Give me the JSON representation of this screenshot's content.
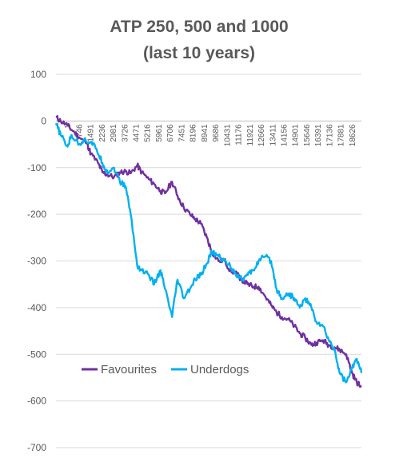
{
  "chart_data": {
    "type": "line",
    "title_lines": [
      "ATP 250, 500 and 1000",
      "(last 10 years)"
    ],
    "xlabel": "",
    "ylabel": "",
    "ylim": [
      -700,
      100
    ],
    "yticks": [
      100,
      0,
      -100,
      -200,
      -300,
      -400,
      -500,
      -600,
      -700
    ],
    "xlim": [
      1,
      19600
    ],
    "x_tick_labels": [
      "1",
      "746",
      "1491",
      "2236",
      "2981",
      "3726",
      "4471",
      "5216",
      "5961",
      "6706",
      "7451",
      "8196",
      "8941",
      "9686",
      "10431",
      "11176",
      "11921",
      "12666",
      "13411",
      "14156",
      "14901",
      "15646",
      "16391",
      "17136",
      "17881",
      "18626"
    ],
    "grid": true,
    "legend_position": "bottom-left inside plot",
    "series": [
      {
        "name": "Favourites",
        "color": "#7030A0",
        "x": [
          1,
          300,
          746,
          1200,
          1491,
          2000,
          2236,
          2700,
          2981,
          3300,
          3726,
          4100,
          4471,
          4800,
          5216,
          5500,
          5961,
          6300,
          6706,
          7000,
          7451,
          7800,
          8196,
          8600,
          8941,
          9300,
          9686,
          10000,
          10431,
          10800,
          11176,
          11500,
          11921,
          12300,
          12666,
          13000,
          13411,
          13800,
          14156,
          14500,
          14901,
          15300,
          15646,
          16000,
          16391,
          16700,
          17136,
          17500,
          17881,
          18200,
          18626,
          19000,
          19300,
          19600
        ],
        "values": [
          8,
          0,
          -10,
          -25,
          -35,
          -48,
          -70,
          -90,
          -110,
          -115,
          -120,
          -110,
          -108,
          -112,
          -95,
          -110,
          -125,
          -135,
          -150,
          -155,
          -130,
          -160,
          -185,
          -200,
          -210,
          -220,
          -250,
          -280,
          -300,
          -298,
          -320,
          -325,
          -340,
          -350,
          -355,
          -355,
          -375,
          -395,
          -410,
          -420,
          -425,
          -440,
          -455,
          -465,
          -480,
          -475,
          -470,
          -480,
          -485,
          -490,
          -500,
          -540,
          -560,
          -570
        ]
      },
      {
        "name": "Underdogs",
        "color": "#00B0F0",
        "x": [
          1,
          300,
          746,
          1000,
          1491,
          1800,
          2236,
          2600,
          2981,
          3300,
          3726,
          4100,
          4471,
          4800,
          5216,
          5500,
          5961,
          6300,
          6706,
          7000,
          7451,
          7800,
          8196,
          8600,
          8941,
          9300,
          9686,
          10000,
          10431,
          10800,
          11176,
          11500,
          11921,
          12300,
          12666,
          13000,
          13411,
          13800,
          14156,
          14500,
          14901,
          15300,
          15646,
          16000,
          16391,
          16700,
          17136,
          17500,
          17881,
          18200,
          18626,
          19000,
          19300,
          19600
        ],
        "values": [
          -5,
          -30,
          -55,
          -30,
          -50,
          -40,
          -45,
          -60,
          -90,
          -110,
          -100,
          -130,
          -140,
          -200,
          -310,
          -320,
          -330,
          -350,
          -320,
          -360,
          -420,
          -340,
          -380,
          -360,
          -340,
          -330,
          -305,
          -280,
          -290,
          -300,
          -310,
          -325,
          -340,
          -330,
          -320,
          -300,
          -290,
          -300,
          -360,
          -380,
          -370,
          -380,
          -400,
          -380,
          -400,
          -430,
          -440,
          -470,
          -490,
          -540,
          -560,
          -530,
          -510,
          -540
        ]
      }
    ]
  }
}
